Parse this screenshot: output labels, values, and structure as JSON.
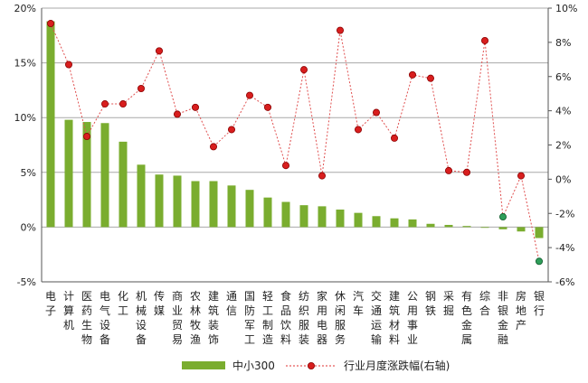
{
  "chart_data": {
    "type": "bar",
    "categories": [
      "电子",
      "计算机",
      "医药生物",
      "电气设备",
      "化工",
      "机械设备",
      "传媒",
      "商业贸易",
      "农林牧渔",
      "建筑装饰",
      "通信",
      "国防军工",
      "轻工制造",
      "食品饮料",
      "纺织服装",
      "家用电器",
      "休闲服务",
      "汽车",
      "交通运输",
      "建筑材料",
      "公用事业",
      "钢铁",
      "采掘",
      "有色金属",
      "综合",
      "非银金融",
      "房地产",
      "银行"
    ],
    "series": [
      {
        "name": "中小300",
        "type": "bar",
        "axis": "left",
        "color": "#7aad2f",
        "values": [
          18.8,
          9.8,
          9.6,
          9.5,
          7.8,
          5.7,
          4.8,
          4.7,
          4.2,
          4.2,
          3.8,
          3.4,
          2.7,
          2.3,
          2.0,
          1.9,
          1.6,
          1.3,
          1.0,
          0.8,
          0.7,
          0.3,
          0.2,
          0.1,
          0.0,
          -0.2,
          -0.4,
          -1.0
        ]
      },
      {
        "name": "行业月度涨跌幅(右轴)",
        "type": "line",
        "axis": "right",
        "color": "#e03030",
        "values": [
          9.1,
          6.7,
          2.5,
          4.4,
          4.4,
          5.3,
          7.5,
          3.8,
          4.2,
          1.9,
          2.9,
          4.9,
          4.2,
          0.8,
          6.4,
          0.2,
          8.7,
          2.9,
          3.9,
          2.4,
          6.1,
          5.9,
          0.5,
          0.4,
          8.1,
          -2.2,
          0.2,
          -4.8
        ]
      }
    ],
    "y_left": {
      "min": -5,
      "max": 20,
      "ticks": [
        "-5%",
        "0%",
        "5%",
        "10%",
        "15%",
        "20%"
      ]
    },
    "y_right": {
      "min": -6,
      "max": 10,
      "ticks": [
        "-6%",
        "-4%",
        "-2%",
        "0%",
        "2%",
        "4%",
        "6%",
        "8%",
        "10%"
      ]
    },
    "grid": true,
    "legend_position": "bottom"
  },
  "legend": {
    "bar_label": "中小300",
    "line_label": "行业月度涨跌幅(右轴)"
  }
}
